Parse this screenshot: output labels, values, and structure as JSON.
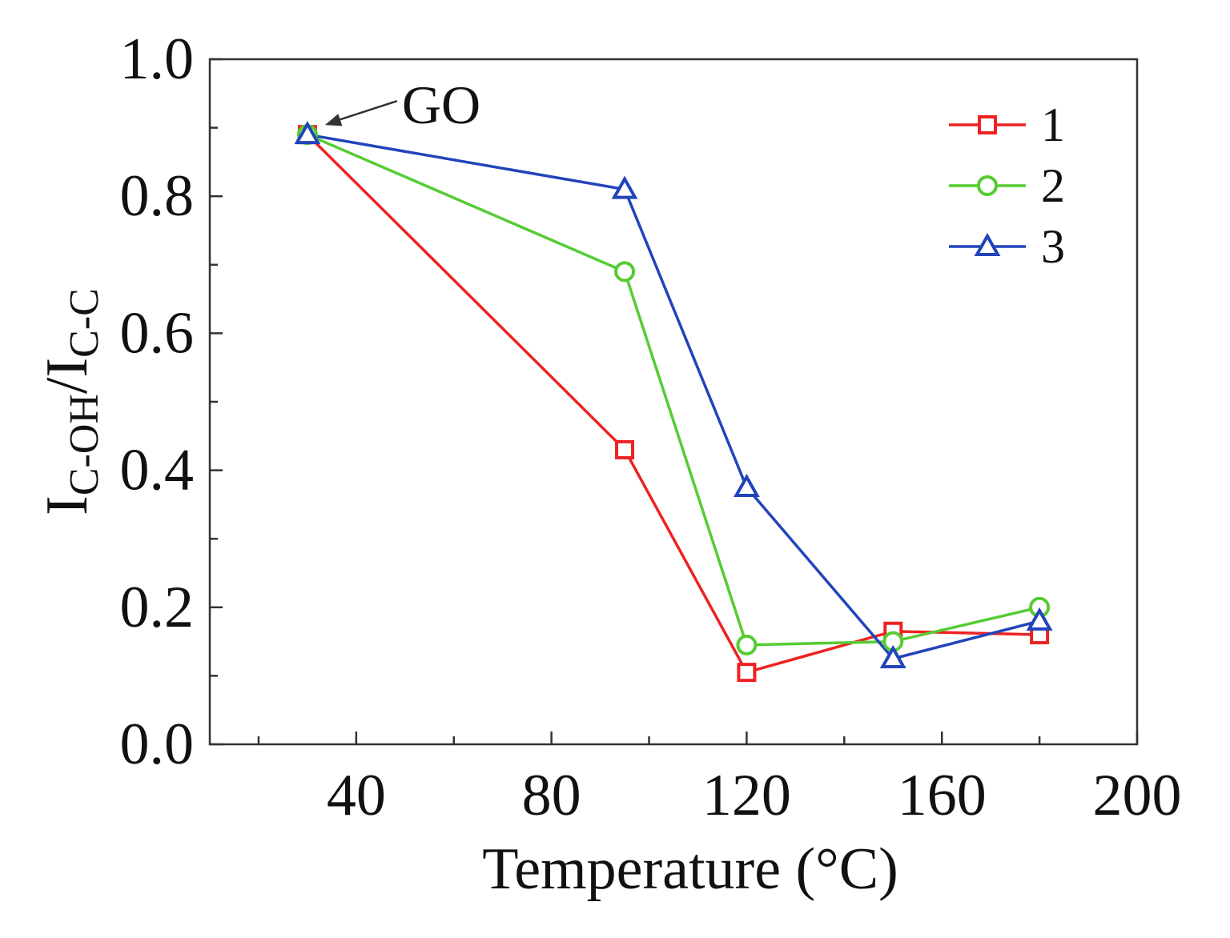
{
  "chart_data": {
    "type": "line",
    "title": "",
    "xlabel": "Temperature (°C)",
    "ylabel": {
      "main": "I",
      "sub_numerator": "C-OH",
      "separator": "/I",
      "sub_denominator": "C-C"
    },
    "xlim": [
      10,
      200
    ],
    "ylim": [
      0.0,
      1.0
    ],
    "x_ticks": [
      40,
      80,
      120,
      160,
      200
    ],
    "x_tick_labels": [
      "40",
      "80",
      "120",
      "160",
      "200"
    ],
    "x_minor_ticks": [
      20,
      60,
      100,
      140,
      180
    ],
    "y_ticks": [
      0.0,
      0.2,
      0.4,
      0.6,
      0.8,
      1.0
    ],
    "y_tick_labels": [
      "0.0",
      "0.2",
      "0.4",
      "0.6",
      "0.8",
      "1.0"
    ],
    "y_minor_ticks": [
      0.1,
      0.3,
      0.5,
      0.7,
      0.9
    ],
    "grid": false,
    "legend_position": "top-right",
    "series": [
      {
        "name": "1",
        "color": "#ee2222",
        "marker": "square",
        "x": [
          30,
          95,
          120,
          150,
          180
        ],
        "values": [
          0.89,
          0.43,
          0.105,
          0.165,
          0.16
        ]
      },
      {
        "name": "2",
        "color": "#55cc33",
        "marker": "circle",
        "x": [
          30,
          95,
          120,
          150,
          180
        ],
        "values": [
          0.89,
          0.69,
          0.145,
          0.15,
          0.2
        ]
      },
      {
        "name": "3",
        "color": "#2244bb",
        "marker": "triangle",
        "x": [
          30,
          95,
          120,
          150,
          180
        ],
        "values": [
          0.89,
          0.81,
          0.375,
          0.125,
          0.18
        ]
      }
    ],
    "annotations": [
      {
        "text": "GO",
        "x": 30,
        "y": 0.89,
        "arrow": true
      }
    ]
  }
}
